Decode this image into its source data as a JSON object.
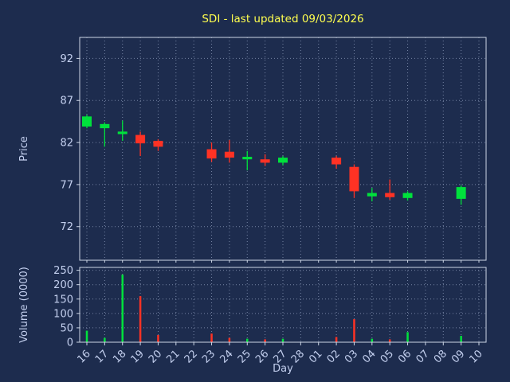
{
  "title": "SDI - last updated 09/03/2026",
  "colors": {
    "background": "#1d2c4e",
    "up": "#00e13c",
    "down": "#ff3224",
    "grid": "#8593b2",
    "spine": "#cdd6e6",
    "tick_text": "#c3cfee",
    "title_text": "#ffff4f"
  },
  "chart_data": {
    "type": "candlestick",
    "title": "SDI - last updated 09/03/2026",
    "xlabel": "Day",
    "price_ylabel": "Price",
    "volume_ylabel": "Volume (0000)",
    "grid": "dotted",
    "legend_position": "none",
    "categories": [
      "16",
      "17",
      "18",
      "19",
      "20",
      "21",
      "22",
      "23",
      "24",
      "25",
      "26",
      "27",
      "28",
      "01",
      "02",
      "03",
      "04",
      "05",
      "06",
      "07",
      "08",
      "09",
      "10"
    ],
    "price_ticks": [
      72,
      77,
      82,
      87,
      92
    ],
    "price_ylim": [
      68,
      94.5
    ],
    "volume_ticks": [
      0,
      50,
      100,
      150,
      200,
      250
    ],
    "volume_ylim": [
      0,
      260
    ],
    "candles": [
      {
        "day": "16",
        "open": 83.9,
        "high": 85.3,
        "low": 83.7,
        "close": 85.1,
        "volume": 40
      },
      {
        "day": "17",
        "open": 83.7,
        "high": 84.4,
        "low": 81.5,
        "close": 84.2,
        "volume": 15
      },
      {
        "day": "18",
        "open": 83.0,
        "high": 84.6,
        "low": 82.2,
        "close": 83.3,
        "volume": 235
      },
      {
        "day": "19",
        "open": 82.9,
        "high": 83.3,
        "low": 80.4,
        "close": 81.9,
        "volume": 160
      },
      {
        "day": "20",
        "open": 82.2,
        "high": 82.4,
        "low": 81.0,
        "close": 81.5,
        "volume": 25
      },
      null,
      null,
      {
        "day": "23",
        "open": 81.2,
        "high": 82.0,
        "low": 79.7,
        "close": 80.1,
        "volume": 30
      },
      {
        "day": "24",
        "open": 80.9,
        "high": 82.3,
        "low": 79.6,
        "close": 80.2,
        "volume": 15
      },
      {
        "day": "25",
        "open": 80.0,
        "high": 81.0,
        "low": 78.7,
        "close": 80.3,
        "volume": 12
      },
      {
        "day": "26",
        "open": 80.0,
        "high": 80.6,
        "low": 79.2,
        "close": 79.6,
        "volume": 10
      },
      {
        "day": "27",
        "open": 79.6,
        "high": 80.4,
        "low": 79.3,
        "close": 80.2,
        "volume": 12
      },
      null,
      null,
      {
        "day": "02",
        "open": 80.2,
        "high": 80.4,
        "low": 78.9,
        "close": 79.4,
        "volume": 18
      },
      {
        "day": "03",
        "open": 79.1,
        "high": 79.4,
        "low": 75.4,
        "close": 76.2,
        "volume": 80
      },
      {
        "day": "04",
        "open": 75.6,
        "high": 76.6,
        "low": 75.0,
        "close": 76.0,
        "volume": 12
      },
      {
        "day": "05",
        "open": 76.0,
        "high": 77.6,
        "low": 75.2,
        "close": 75.5,
        "volume": 10
      },
      {
        "day": "06",
        "open": 75.4,
        "high": 76.2,
        "low": 75.1,
        "close": 76.0,
        "volume": 35
      },
      null,
      null,
      {
        "day": "09",
        "open": 75.3,
        "high": 76.9,
        "low": 74.6,
        "close": 76.7,
        "volume": 22
      },
      null
    ]
  }
}
